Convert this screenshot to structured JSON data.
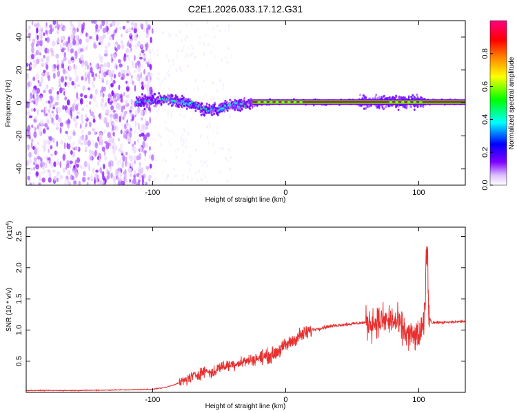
{
  "figure_title": "C2E1.2026.033.17.12.G31",
  "chart_data": [
    {
      "type": "heatmap",
      "title": "C2E1.2026.033.17.12.G31",
      "xlabel": "Height of straight line (km)",
      "ylabel": "Frequency (Hz)",
      "xlim": [
        -195,
        135
      ],
      "ylim": [
        -50,
        50
      ],
      "xticks": [
        -100,
        0,
        100
      ],
      "yticks": [
        -40,
        -20,
        0,
        20,
        40
      ],
      "grid": false,
      "colorbar": {
        "label": "Normalized spectral amplitude",
        "range": [
          0.0,
          1.0
        ],
        "ticks": [
          0.0,
          0.2,
          0.4,
          0.6,
          0.8
        ],
        "colormap": [
          "#ffffff",
          "#e6ccff",
          "#8000ff",
          "#0000ff",
          "#00ffff",
          "#00ff00",
          "#ffff00",
          "#ff8000",
          "#ff0000",
          "#ff0080"
        ]
      },
      "center_line": [
        {
          "x": -110,
          "y": 0.5
        },
        {
          "x": -100,
          "y": 1.5
        },
        {
          "x": -90,
          "y": 2
        },
        {
          "x": -80,
          "y": 1
        },
        {
          "x": -70,
          "y": -1
        },
        {
          "x": -60,
          "y": -4
        },
        {
          "x": -50,
          "y": -4
        },
        {
          "x": -45,
          "y": -2
        },
        {
          "x": -40,
          "y": -1
        },
        {
          "x": -30,
          "y": -1
        },
        {
          "x": -20,
          "y": 0
        },
        {
          "x": 0,
          "y": 0.5
        },
        {
          "x": 135,
          "y": 0.5
        }
      ]
    },
    {
      "type": "line",
      "xlabel": "Height of straight line (km)",
      "ylabel": "SNR (10 * v/v)",
      "y_multiplier": "(x10",
      "y_multiplier_exp": "4",
      "y_multiplier_close": ")",
      "xlim": [
        -195,
        135
      ],
      "ylim": [
        0,
        2.65
      ],
      "xticks": [
        -100,
        0,
        100
      ],
      "yticks": [
        0.5,
        1.0,
        1.5,
        2.0,
        2.5
      ],
      "ytick_labels": [
        "0.5",
        "1.0",
        "1.5",
        "2.0",
        "2.5"
      ],
      "grid": false,
      "color": "#e83030",
      "series": [
        {
          "x": [
            -195,
            -160,
            -120,
            -100,
            -90,
            -80,
            -70,
            -60,
            -55,
            -50,
            -40,
            -30,
            -20,
            -10,
            0,
            10,
            20,
            30,
            40,
            50,
            60,
            70,
            75,
            80,
            85,
            90,
            95,
            100,
            103,
            105,
            106,
            108,
            110,
            120,
            135
          ],
          "y": [
            0.03,
            0.03,
            0.04,
            0.05,
            0.08,
            0.15,
            0.25,
            0.35,
            0.3,
            0.4,
            0.45,
            0.5,
            0.55,
            0.6,
            0.75,
            0.9,
            1.0,
            1.05,
            1.08,
            1.1,
            1.12,
            1.13,
            1.15,
            1.15,
            1.1,
            0.95,
            0.9,
            0.9,
            1.0,
            1.4,
            2.2,
            1.2,
            1.12,
            1.12,
            1.14
          ]
        }
      ]
    }
  ]
}
